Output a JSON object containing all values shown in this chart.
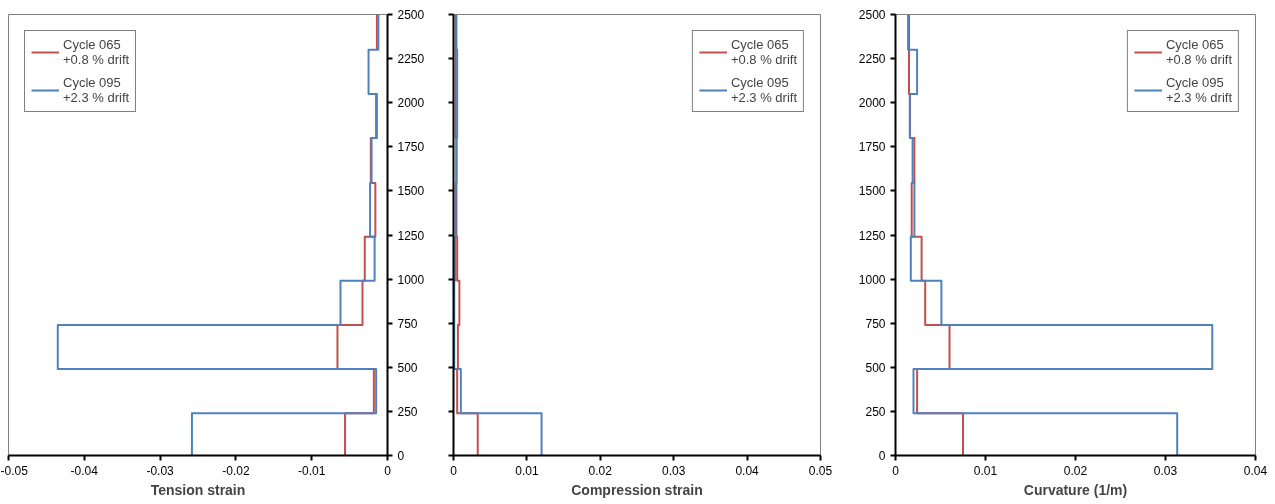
{
  "chart_data": [
    {
      "type": "step",
      "orientation": "horizontal",
      "xlabel": "Tension strain",
      "xlim": [
        -0.05,
        0
      ],
      "xticks": [
        -0.05,
        -0.04,
        -0.03,
        -0.02,
        -0.01,
        0
      ],
      "ylim": [
        0,
        2500
      ],
      "yticks": [
        0,
        250,
        500,
        750,
        1000,
        1250,
        1500,
        1750,
        2000,
        2250,
        2500
      ],
      "grid": false,
      "legend": "top left",
      "x": [
        0,
        240,
        490,
        740,
        990,
        1240,
        1545,
        1800,
        2050,
        2300,
        2500
      ],
      "series": [
        {
          "name": "Cycle 065\n+0.8 % drift",
          "color": "#c0504d",
          "values": [
            -0.0056,
            -0.0018,
            -0.0066,
            -0.0033,
            -0.003,
            -0.0016,
            -0.0022,
            -0.0015,
            null,
            -0.0014,
            -0.0014
          ]
        },
        {
          "name": "Cycle 095\n+2.3 % drift",
          "color": "#4f81bd",
          "values": [
            -0.0258,
            -0.0015,
            -0.0435,
            -0.0062,
            -0.0017,
            -0.0023,
            -0.0021,
            -0.0014,
            -0.0025,
            -0.0012,
            -0.0012
          ]
        }
      ]
    },
    {
      "type": "step",
      "orientation": "horizontal",
      "xlabel": "Compression strain",
      "xlim": [
        0,
        0.05
      ],
      "xticks": [
        0,
        0.01,
        0.02,
        0.03,
        0.04,
        0.05
      ],
      "ylim": [
        0,
        2500
      ],
      "yticks": [
        0,
        250,
        500,
        750,
        1000,
        1250,
        1500,
        1750,
        2000,
        2250,
        2500
      ],
      "grid": false,
      "legend": "top right",
      "tick_labels": "x",
      "x": [
        0,
        240,
        490,
        740,
        990,
        1240,
        1545,
        1800,
        2050,
        2300,
        2500
      ],
      "series": [
        {
          "name": "Cycle 065\n+0.8 % drift",
          "color": "#c0504d",
          "values": [
            0.0033,
            0.0005,
            0.0006,
            0.0008,
            0.0005,
            0.0004,
            0.0004,
            0.0003,
            0.0003,
            0.0003,
            0.0003
          ]
        },
        {
          "name": "Cycle 095\n+2.3 % drift",
          "color": "#4f81bd",
          "values": [
            0.012,
            0.001,
            0.0001,
            0.0001,
            0.0002,
            0.0003,
            0.0004,
            0.0005,
            0.0005,
            0.0004,
            0.0004
          ]
        }
      ]
    },
    {
      "type": "step",
      "orientation": "horizontal",
      "xlabel": "Curvature (1/m)",
      "xlim": [
        0,
        0.04
      ],
      "xticks": [
        0,
        0.01,
        0.02,
        0.03,
        0.04
      ],
      "ylim": [
        0,
        2500
      ],
      "yticks": [
        0,
        250,
        500,
        750,
        1000,
        1250,
        1500,
        1750,
        2000,
        2250,
        2500
      ],
      "grid": false,
      "legend": "top right",
      "x": [
        0,
        240,
        490,
        740,
        990,
        1240,
        1545,
        1800,
        2050,
        2300,
        2500
      ],
      "series": [
        {
          "name": "Cycle 065\n+0.8 % drift",
          "color": "#c0504d",
          "values": [
            0.0075,
            0.0024,
            0.006,
            0.0033,
            0.0029,
            0.0018,
            0.0021,
            0.0016,
            0.0015,
            0.0015,
            0.0015
          ]
        },
        {
          "name": "Cycle 095\n+2.3 % drift",
          "color": "#4f81bd",
          "values": [
            0.0313,
            0.002,
            0.0352,
            0.0051,
            0.0017,
            0.0021,
            0.0019,
            0.0016,
            0.0024,
            0.0014,
            0.0014
          ]
        }
      ]
    }
  ]
}
